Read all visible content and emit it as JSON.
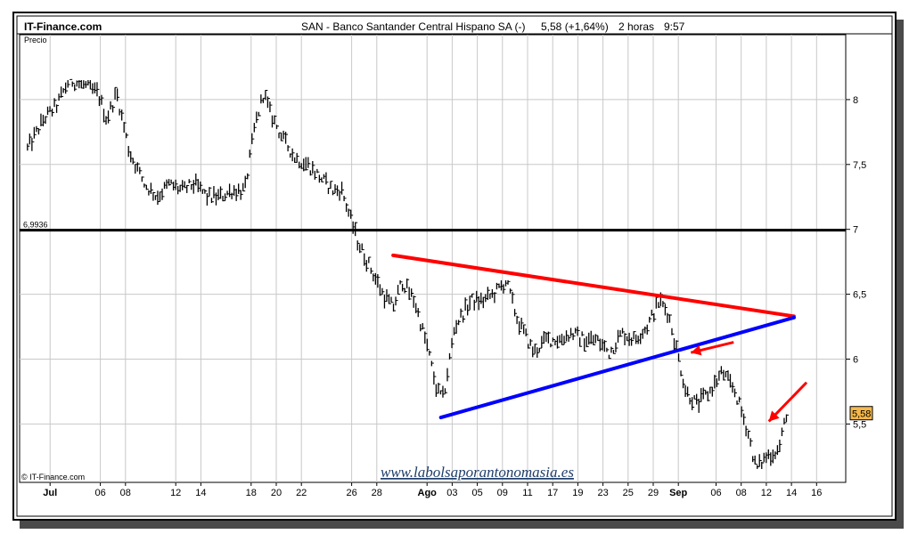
{
  "header": {
    "site": "IT-Finance.com",
    "title": "SAN - Banco Santander Central Hispano SA (-)",
    "price_change": "5,58 (+1,64%)",
    "period": "2 horas",
    "time": "9:57"
  },
  "footer": {
    "copyright": "© IT-Finance.com",
    "watermark": "www.labolsaporantonomasia.es"
  },
  "colors": {
    "price_bars": "#000000",
    "support_line": "#000000",
    "resistance_trendline": "#ff0000",
    "support_trendline": "#0000ff",
    "arrows": "#ff0000",
    "last_price_badge": "#f5b84a"
  },
  "chart_data": {
    "type": "bar",
    "ylabel": "Precio",
    "ylim": [
      5.05,
      8.5
    ],
    "y_ticks": [
      {
        "value": 8,
        "label": "8"
      },
      {
        "value": 7.5,
        "label": "7,5"
      },
      {
        "value": 7,
        "label": "7"
      },
      {
        "value": 6.5,
        "label": "6,5"
      },
      {
        "value": 6,
        "label": "6"
      },
      {
        "value": 5.5,
        "label": "5,5"
      }
    ],
    "x_ticks": [
      {
        "day": 2,
        "label": "Jul",
        "bold": true
      },
      {
        "day": 6,
        "label": "06"
      },
      {
        "day": 8,
        "label": "08"
      },
      {
        "day": 12,
        "label": "12"
      },
      {
        "day": 14,
        "label": "14"
      },
      {
        "day": 18,
        "label": "18"
      },
      {
        "day": 20,
        "label": "20"
      },
      {
        "day": 22,
        "label": "22"
      },
      {
        "day": 26,
        "label": "26"
      },
      {
        "day": 28,
        "label": "28"
      },
      {
        "day": 32,
        "label": "Ago",
        "bold": true
      },
      {
        "day": 34,
        "label": "03"
      },
      {
        "day": 36,
        "label": "05"
      },
      {
        "day": 38,
        "label": "09"
      },
      {
        "day": 40,
        "label": "11"
      },
      {
        "day": 42,
        "label": "17"
      },
      {
        "day": 44,
        "label": "19"
      },
      {
        "day": 46,
        "label": "23"
      },
      {
        "day": 48,
        "label": "25"
      },
      {
        "day": 50,
        "label": "29"
      },
      {
        "day": 52,
        "label": "Sep",
        "bold": true
      },
      {
        "day": 55,
        "label": "06"
      },
      {
        "day": 57,
        "label": "08"
      },
      {
        "day": 59,
        "label": "12"
      },
      {
        "day": 61,
        "label": "14"
      },
      {
        "day": 63,
        "label": "16"
      }
    ],
    "xlim": [
      0,
      65.6
    ],
    "price_path": [
      [
        0.2,
        7.62
      ],
      [
        1.5,
        7.85
      ],
      [
        2.5,
        7.95
      ],
      [
        3.5,
        8.15
      ],
      [
        4.5,
        8.12
      ],
      [
        5.8,
        8.05
      ],
      [
        6.5,
        7.85
      ],
      [
        7.3,
        8.05
      ],
      [
        8.3,
        7.6
      ],
      [
        9.5,
        7.35
      ],
      [
        10.5,
        7.25
      ],
      [
        11.5,
        7.35
      ],
      [
        12.5,
        7.3
      ],
      [
        13.5,
        7.35
      ],
      [
        14.5,
        7.25
      ],
      [
        15.5,
        7.25
      ],
      [
        16.5,
        7.3
      ],
      [
        17.5,
        7.3
      ],
      [
        18.3,
        7.8
      ],
      [
        19,
        8.05
      ],
      [
        19.5,
        7.9
      ],
      [
        20.5,
        7.7
      ],
      [
        21.5,
        7.55
      ],
      [
        22.5,
        7.5
      ],
      [
        23.5,
        7.4
      ],
      [
        24.5,
        7.3
      ],
      [
        25.2,
        7.3
      ],
      [
        26.5,
        6.9
      ],
      [
        27.5,
        6.7
      ],
      [
        28.5,
        6.5
      ],
      [
        29.3,
        6.4
      ],
      [
        30,
        6.6
      ],
      [
        31,
        6.45
      ],
      [
        32,
        6.1
      ],
      [
        32.8,
        5.75
      ],
      [
        33.3,
        5.7
      ],
      [
        34.2,
        6.25
      ],
      [
        35.5,
        6.45
      ],
      [
        36.5,
        6.45
      ],
      [
        37.3,
        6.5
      ],
      [
        38.3,
        6.6
      ],
      [
        39.2,
        6.3
      ],
      [
        40.5,
        6.05
      ],
      [
        41.5,
        6.15
      ],
      [
        42.5,
        6.15
      ],
      [
        43.5,
        6.2
      ],
      [
        44.5,
        6.15
      ],
      [
        45.5,
        6.15
      ],
      [
        46.5,
        6.05
      ],
      [
        47.5,
        6.2
      ],
      [
        48.5,
        6.15
      ],
      [
        49.5,
        6.25
      ],
      [
        50.5,
        6.45
      ],
      [
        51.2,
        6.35
      ],
      [
        51.8,
        6.1
      ],
      [
        52.6,
        5.75
      ],
      [
        53.5,
        5.65
      ],
      [
        54.5,
        5.75
      ],
      [
        55.5,
        5.9
      ],
      [
        56.5,
        5.75
      ],
      [
        57.5,
        5.45
      ],
      [
        58.2,
        5.15
      ],
      [
        59,
        5.25
      ],
      [
        60,
        5.3
      ],
      [
        60.6,
        5.58
      ]
    ],
    "price_low": 5.1,
    "price_high": 8.15,
    "last_price": 5.58,
    "last_price_label": "5,58",
    "horizontal_line": {
      "value": 6.9936,
      "label": "6,9936"
    },
    "trendlines": [
      {
        "name": "resistance",
        "from": [
          29.3,
          6.8
        ],
        "to": [
          61.2,
          6.33
        ]
      },
      {
        "name": "support",
        "from": [
          33.1,
          5.55
        ],
        "to": [
          61.2,
          6.32
        ]
      }
    ],
    "arrows": [
      {
        "from": [
          56.4,
          6.13
        ],
        "to": [
          53,
          6.05
        ]
      },
      {
        "from": [
          62.2,
          5.82
        ],
        "to": [
          59.2,
          5.52
        ]
      }
    ]
  }
}
